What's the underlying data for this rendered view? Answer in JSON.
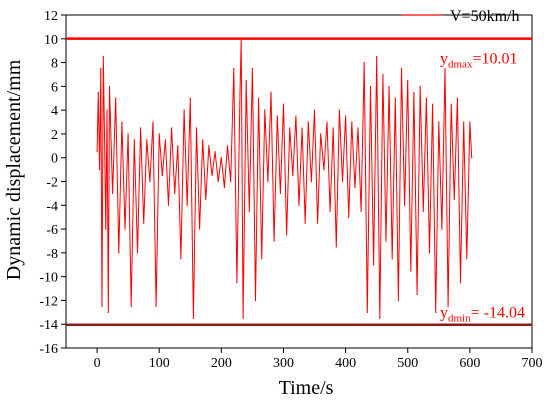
{
  "chart_data": {
    "type": "line",
    "xlabel": "Time/s",
    "ylabel": "Dynamic displacement/mm",
    "xlim": [
      -50,
      700
    ],
    "ylim": [
      -16,
      12
    ],
    "xticks": [
      0,
      100,
      200,
      300,
      400,
      500,
      600,
      700
    ],
    "yticks": [
      -16,
      -14,
      -12,
      -10,
      -8,
      -6,
      -4,
      -2,
      0,
      2,
      4,
      6,
      8,
      10,
      12
    ],
    "legend": {
      "position": "top-right"
    },
    "series": [
      {
        "name": "V=50km/h",
        "color": "#ff0000",
        "x": [
          0,
          2,
          4,
          6,
          8,
          10,
          12,
          14,
          16,
          18,
          20,
          25,
          30,
          35,
          40,
          45,
          50,
          55,
          60,
          65,
          70,
          75,
          80,
          85,
          90,
          95,
          100,
          105,
          110,
          115,
          120,
          125,
          130,
          135,
          140,
          145,
          150,
          155,
          160,
          165,
          170,
          175,
          180,
          185,
          190,
          195,
          200,
          205,
          210,
          215,
          220,
          225,
          230,
          232,
          235,
          240,
          245,
          250,
          255,
          260,
          265,
          270,
          275,
          280,
          285,
          290,
          295,
          300,
          305,
          310,
          315,
          320,
          325,
          330,
          335,
          340,
          345,
          350,
          355,
          360,
          365,
          370,
          375,
          380,
          385,
          390,
          395,
          400,
          405,
          410,
          415,
          420,
          425,
          430,
          435,
          440,
          445,
          450,
          455,
          460,
          465,
          470,
          475,
          480,
          485,
          490,
          495,
          500,
          505,
          510,
          515,
          520,
          525,
          530,
          535,
          540,
          545,
          550,
          555,
          560,
          565,
          570,
          575,
          580,
          585,
          590,
          595,
          600,
          603
        ],
        "y": [
          0.5,
          5.5,
          -1.0,
          7.5,
          -12.5,
          8.5,
          2.0,
          -6.0,
          4.0,
          -13.0,
          6.0,
          -3.0,
          5.0,
          -8.0,
          3.0,
          -6.0,
          2.0,
          -12.5,
          1.5,
          -8.0,
          2.5,
          -5.5,
          1.5,
          -2.0,
          3.0,
          -12.5,
          2.0,
          -1.5,
          1.5,
          -4.0,
          2.5,
          -3.0,
          1.0,
          -8.5,
          4.0,
          -4.0,
          5.0,
          -13.5,
          2.5,
          -6.0,
          1.5,
          -3.5,
          1.0,
          -1.5,
          0.5,
          -2.0,
          0.0,
          -2.5,
          1.0,
          -2.0,
          7.5,
          -10.5,
          5.5,
          10.0,
          -13.5,
          6.5,
          -4.5,
          7.5,
          -12.0,
          5.0,
          -8.5,
          4.0,
          -2.0,
          5.5,
          -7.0,
          3.5,
          -3.0,
          4.5,
          -6.5,
          2.5,
          -1.5,
          3.5,
          -4.0,
          2.5,
          -5.5,
          3.0,
          -2.0,
          4.0,
          -5.5,
          2.0,
          -1.0,
          3.0,
          -4.5,
          2.5,
          -7.5,
          4.0,
          -2.0,
          3.5,
          -5.0,
          3.0,
          -2.5,
          2.5,
          -4.5,
          8.0,
          -13.0,
          6.0,
          -9.0,
          8.5,
          -13.5,
          7.0,
          -7.0,
          6.0,
          -8.5,
          5.0,
          -12.0,
          7.5,
          -4.0,
          6.5,
          -9.5,
          5.5,
          -11.5,
          6.0,
          -4.5,
          5.0,
          -8.0,
          4.5,
          -13.0,
          3.0,
          -6.0,
          7.5,
          -12.5,
          4.5,
          -3.5,
          5.0,
          -10.5,
          3.0,
          -8.5,
          3.0,
          0.0
        ]
      }
    ],
    "reference_lines": [
      {
        "y": 10.01,
        "label_main": "y",
        "label_sub": "dmax",
        "label_value": "=10.01",
        "color": "#ff0000"
      },
      {
        "y": -14.04,
        "label_main": "y",
        "label_sub": "dmin",
        "label_value": "= -14.04",
        "color": "#8b1a1a"
      }
    ]
  }
}
